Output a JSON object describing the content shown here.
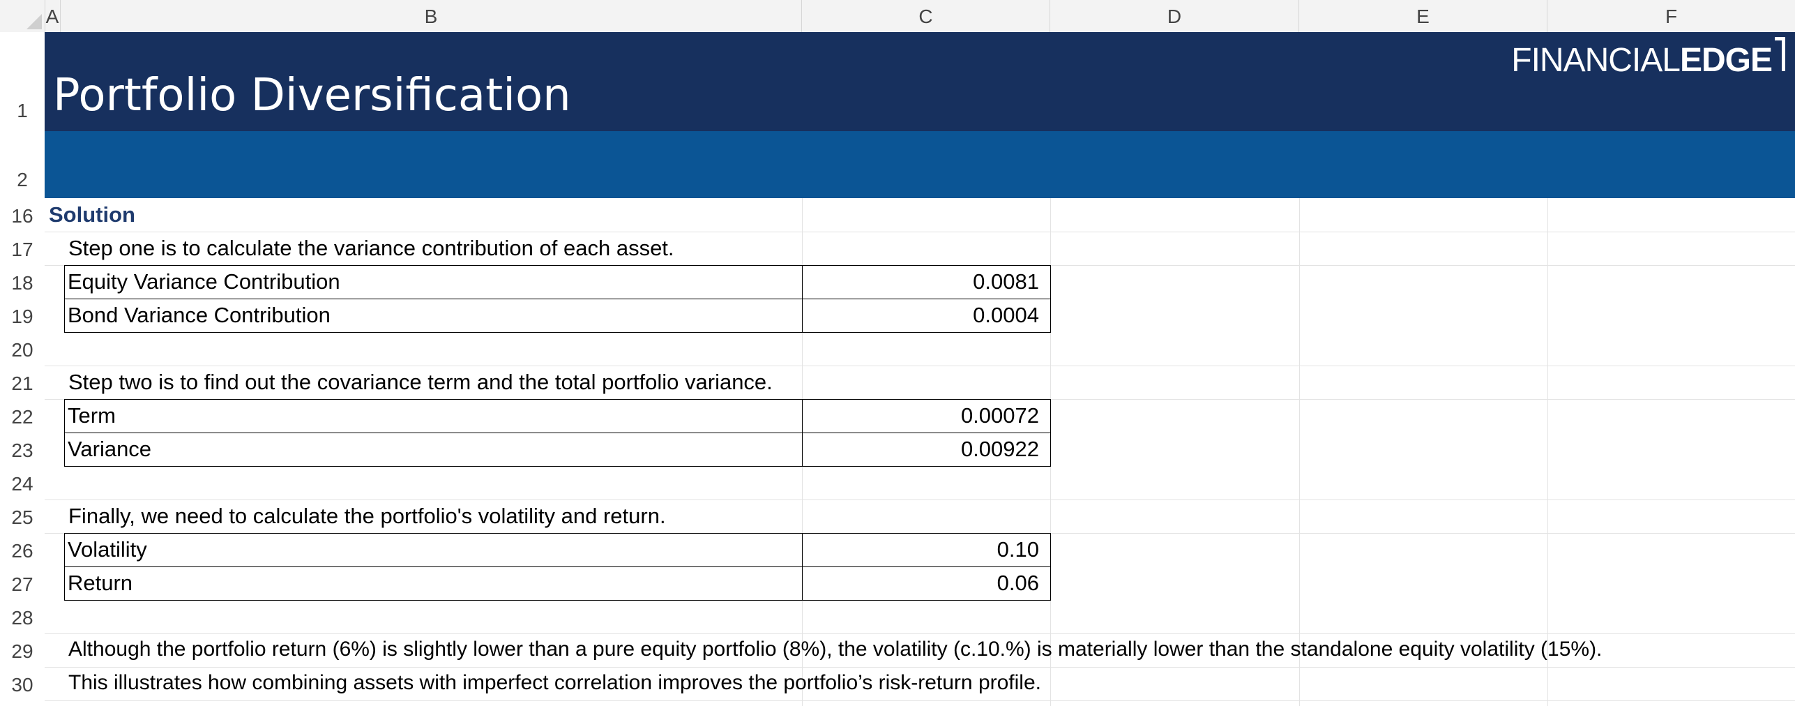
{
  "spreadsheet": {
    "columns": [
      "A",
      "B",
      "C",
      "D",
      "E",
      "F"
    ],
    "rows": [
      "1",
      "2",
      "16",
      "17",
      "18",
      "19",
      "20",
      "21",
      "22",
      "23",
      "24",
      "25",
      "26",
      "27",
      "28",
      "29",
      "30"
    ]
  },
  "header": {
    "title": "Portfolio Diversification",
    "logo_thin": "FINANCIAL",
    "logo_bold": "EDGE",
    "banner_primary_color": "#17305e",
    "banner_secondary_color": "#0b5595"
  },
  "solution": {
    "heading": "Solution",
    "step1_text": "Step one is to calculate the variance contribution of each asset.",
    "step1_rows": [
      {
        "label": "Equity Variance Contribution",
        "value": "0.0081"
      },
      {
        "label": "Bond Variance Contribution",
        "value": "0.0004"
      }
    ],
    "step2_text": "Step two is to find out the covariance term and the total portfolio variance.",
    "step2_rows": [
      {
        "label": "Term",
        "value": "0.00072"
      },
      {
        "label": "Variance",
        "value": "0.00922"
      }
    ],
    "step3_text": "Finally, we need to calculate the portfolio's volatility and return.",
    "step3_rows": [
      {
        "label": "Volatility",
        "value": "0.10"
      },
      {
        "label": "Return",
        "value": "0.06"
      }
    ],
    "conclusion_line1": "Although the portfolio return (6%) is slightly lower than a pure equity portfolio (8%), the volatility (c.10.%) is materially lower than the standalone equity volatility (15%).",
    "conclusion_line2": "This illustrates how combining assets with imperfect correlation improves the portfolio’s risk-return profile."
  }
}
